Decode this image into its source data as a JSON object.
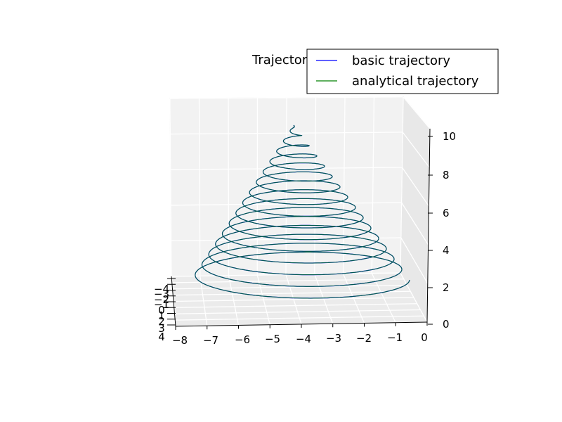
{
  "chart_data": {
    "type": "line",
    "projection": "3d",
    "title": "Trajectory",
    "legend": {
      "placement": "top-right",
      "entries": [
        {
          "label": "basic trajectory",
          "color": "#0000ff"
        },
        {
          "label": "analytical trajectory",
          "color": "#008000"
        }
      ]
    },
    "axes": {
      "x": {
        "range": [
          -8,
          0
        ],
        "ticks": [
          "−8",
          "−7",
          "−6",
          "−5",
          "−4",
          "−3",
          "−2",
          "−1",
          "0"
        ]
      },
      "y": {
        "range": [
          -4,
          4
        ],
        "ticks": [
          "−4",
          "−3",
          "−2",
          "−1",
          "0",
          "1",
          "2",
          "3",
          "4"
        ]
      },
      "z": {
        "range": [
          0,
          10
        ],
        "ticks": [
          "0",
          "2",
          "4",
          "6",
          "8",
          "10"
        ]
      }
    },
    "series": [
      {
        "name": "basic trajectory",
        "color": "#0000ff",
        "curve": "conical helix: radius shrinks linearly as z rises from 0 to 10, centre x = -4, y = 0, 15 turns"
      },
      {
        "name": "analytical trajectory",
        "color": "#008000",
        "curve": "conical helix: radius shrinks linearly as z rises from 0 to 10, centre x = -4, y = 0, 15 turns"
      }
    ]
  }
}
